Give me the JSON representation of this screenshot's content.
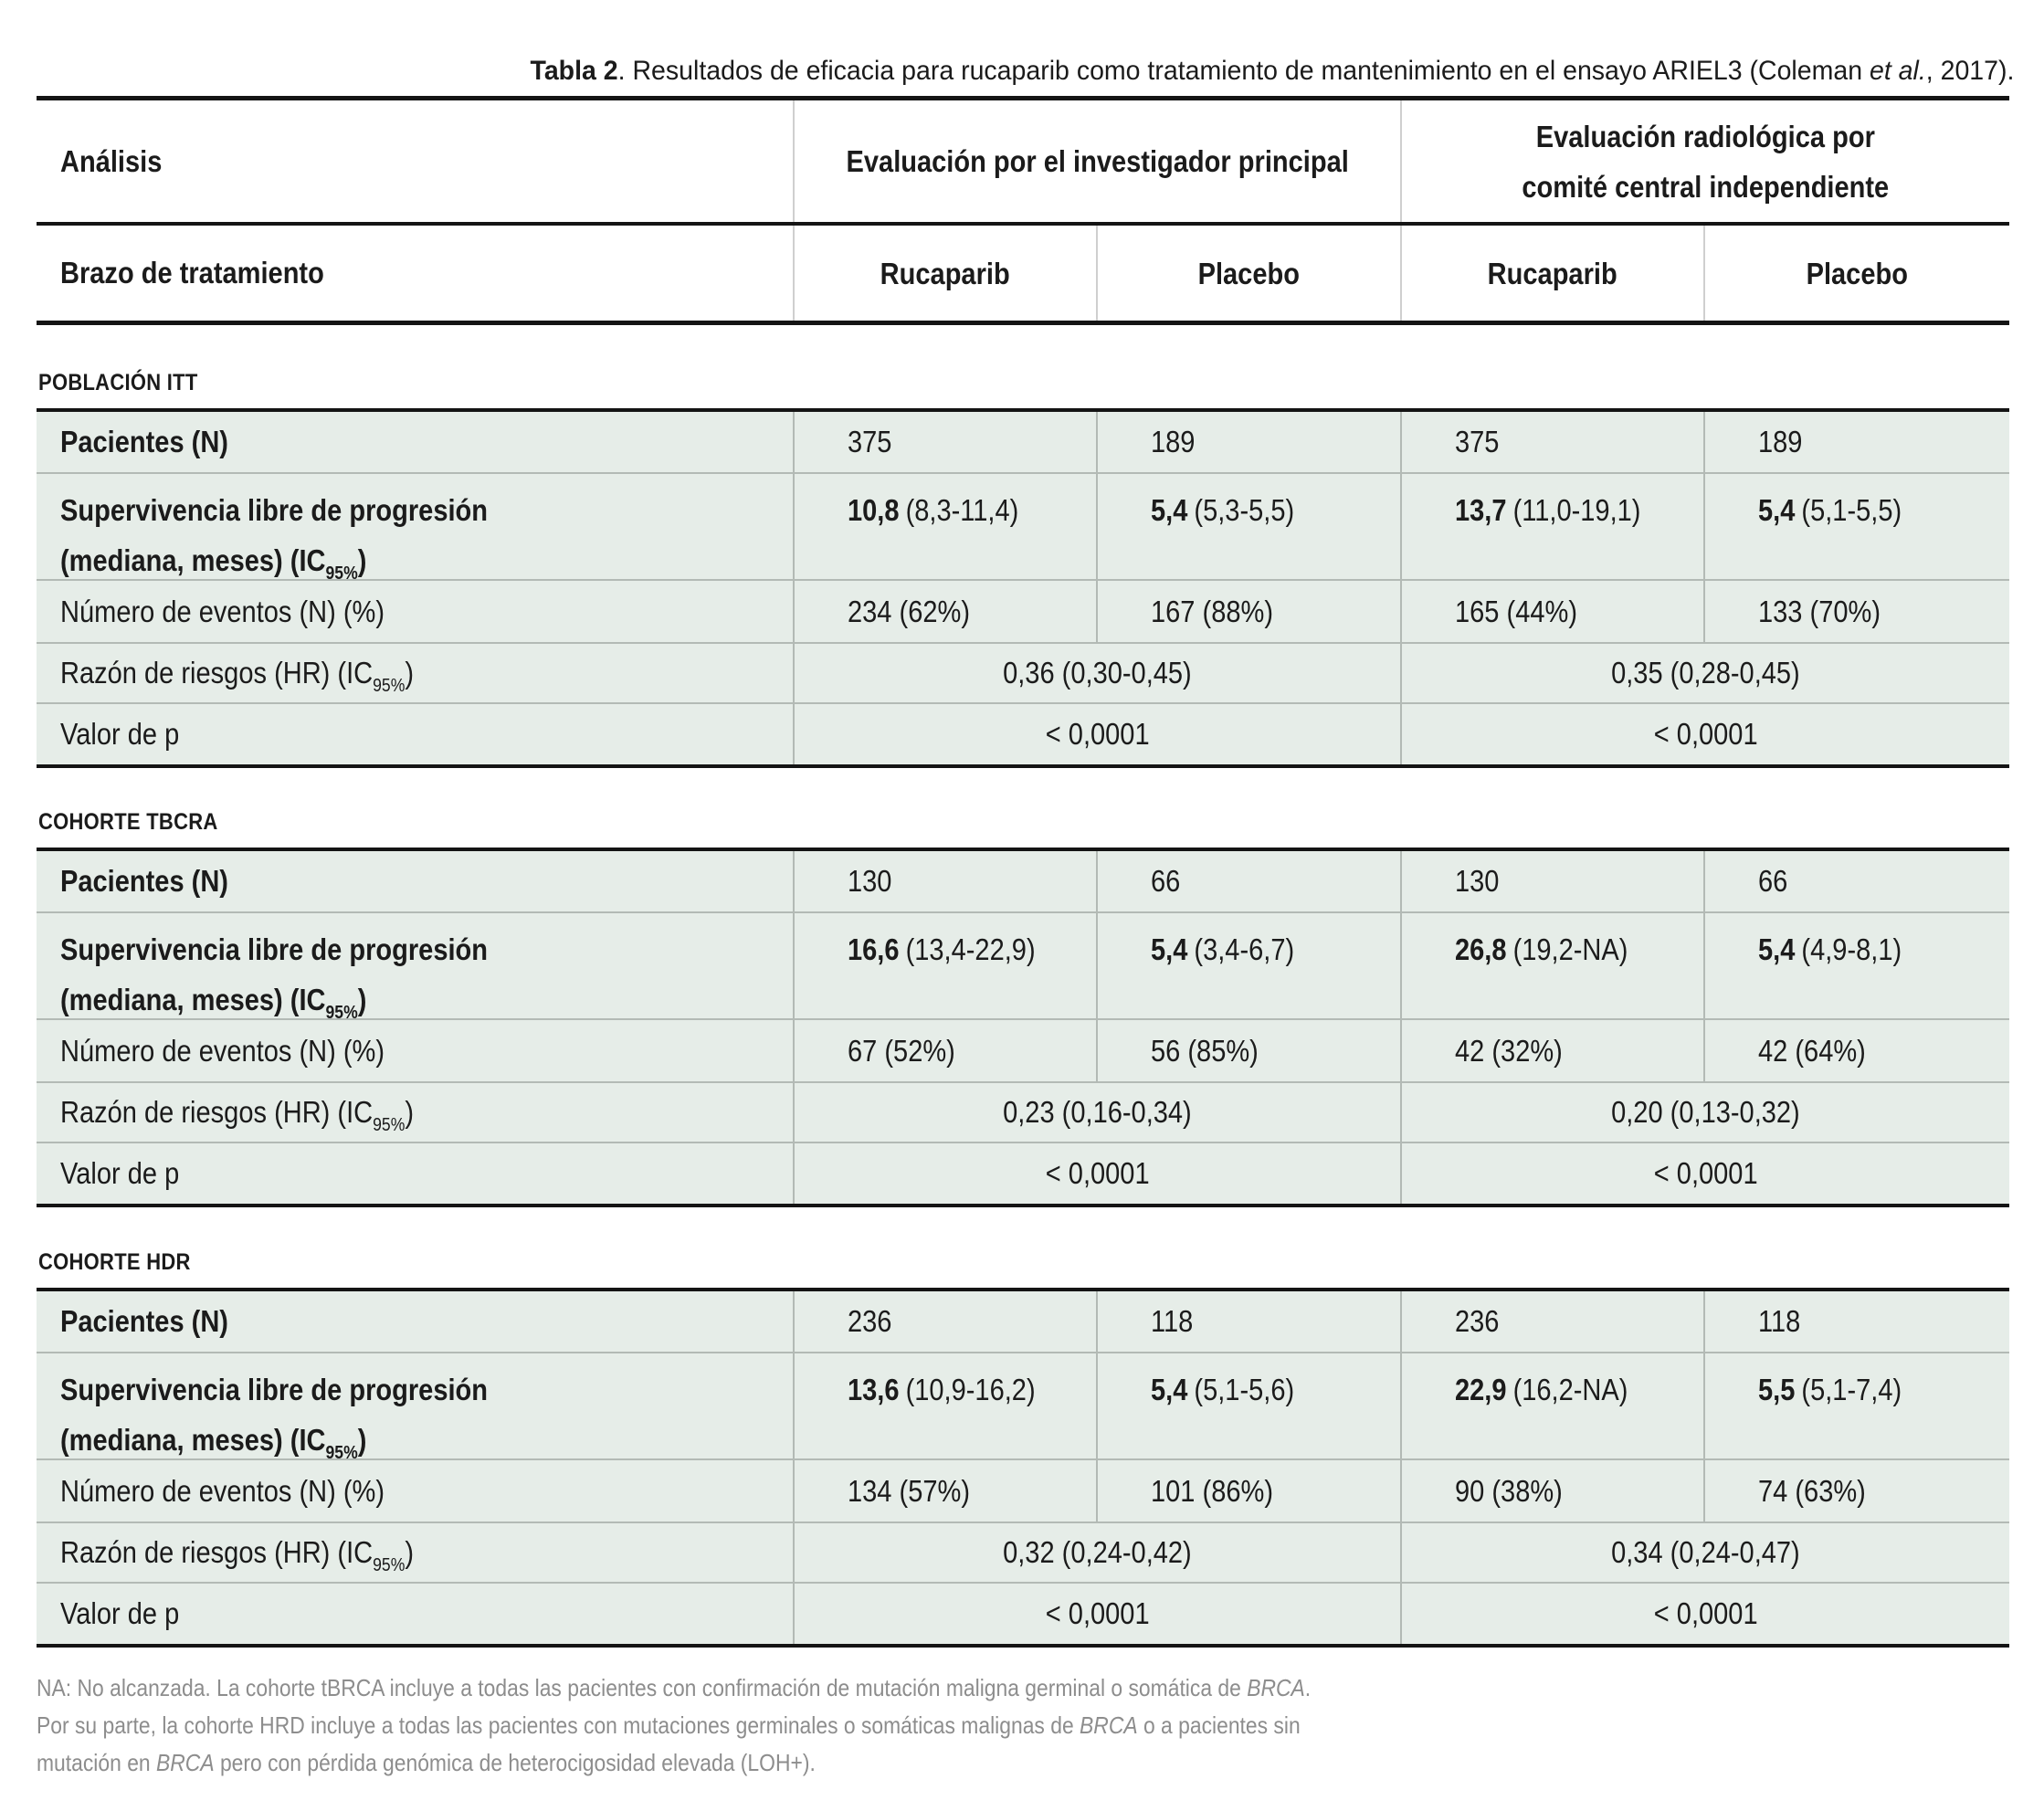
{
  "title": {
    "bold": "Tabla 2",
    "text": ". Resultados de eficacia para rucaparib como tratamiento de mantenimiento en el ensayo ARIEL3 (Coleman ",
    "italic": "et al.",
    "rest": ", 2017)."
  },
  "header": {
    "analysis": "Análisis",
    "group1": "Evaluación por el investigador principal",
    "group2_line1": "Evaluación radiológica por",
    "group2_line2": "comité central independiente",
    "treatment_arm": "Brazo de tratamiento",
    "arms": [
      "Rucaparib",
      "Placebo",
      "Rucaparib",
      "Placebo"
    ]
  },
  "row_labels": {
    "patients": "Pacientes (N)",
    "pfs_line1": "Supervivencia libre de progresión",
    "pfs_line2_pre": "(mediana, meses) (IC",
    "sub": "95%",
    "paren": ")",
    "events": "Número de eventos (N) (%)",
    "hr_pre": "Razón de riesgos (HR) (IC",
    "p": "Valor de p"
  },
  "sections": [
    {
      "name": "POBLACIÓN ITT",
      "patients": [
        "375",
        "189",
        "375",
        "189"
      ],
      "pfs": [
        {
          "median": "10,8",
          "ci": "(8,3-11,4)"
        },
        {
          "median": "5,4",
          "ci": "(5,3-5,5)"
        },
        {
          "median": "13,7",
          "ci": "(11,0-19,1)"
        },
        {
          "median": "5,4",
          "ci": "(5,1-5,5)"
        }
      ],
      "events": [
        "234 (62%)",
        "167 (88%)",
        "165 (44%)",
        "133 (70%)"
      ],
      "hr": [
        "0,36 (0,30-0,45)",
        "0,35 (0,28-0,45)"
      ],
      "p": [
        "< 0,0001",
        "< 0,0001"
      ]
    },
    {
      "name": "COHORTE TBCRA",
      "patients": [
        "130",
        "66",
        "130",
        "66"
      ],
      "pfs": [
        {
          "median": "16,6",
          "ci": "(13,4-22,9)"
        },
        {
          "median": "5,4",
          "ci": "(3,4-6,7)"
        },
        {
          "median": "26,8",
          "ci": "(19,2-NA)"
        },
        {
          "median": "5,4",
          "ci": "(4,9-8,1)"
        }
      ],
      "events": [
        "67 (52%)",
        "56 (85%)",
        "42 (32%)",
        "42 (64%)"
      ],
      "hr": [
        "0,23 (0,16-0,34)",
        "0,20 (0,13-0,32)"
      ],
      "p": [
        "< 0,0001",
        "< 0,0001"
      ]
    },
    {
      "name": "COHORTE HDR",
      "patients": [
        "236",
        "118",
        "236",
        "118"
      ],
      "pfs": [
        {
          "median": "13,6",
          "ci": "(10,9-16,2)"
        },
        {
          "median": "5,4",
          "ci": "(5,1-5,6)"
        },
        {
          "median": "22,9",
          "ci": "(16,2-NA)"
        },
        {
          "median": "5,5",
          "ci": "(5,1-7,4)"
        }
      ],
      "events": [
        "134 (57%)",
        "101 (86%)",
        "90 (38%)",
        "74 (63%)"
      ],
      "hr": [
        "0,32 (0,24-0,42)",
        "0,34 (0,24-0,47)"
      ],
      "p": [
        "< 0,0001",
        "< 0,0001"
      ]
    }
  ],
  "footer": {
    "line1_pre": "NA: No alcanzada. La cohorte tBRCA incluye a todas las pacientes con confirmación de mutación maligna germinal o somática de ",
    "line1_italic": "BRCA",
    "line1_post": ".",
    "line2_pre": "Por su parte, la cohorte HRD incluye a todas las pacientes con mutaciones germinales o somáticas malignas de ",
    "line2_italic": "BRCA",
    "line2_post": " o a pacientes sin",
    "line3_pre": "mutación en ",
    "line3_italic": "BRCA",
    "line3_post": " pero con pérdida genómica de heterocigosidad elevada (LOH+)."
  }
}
